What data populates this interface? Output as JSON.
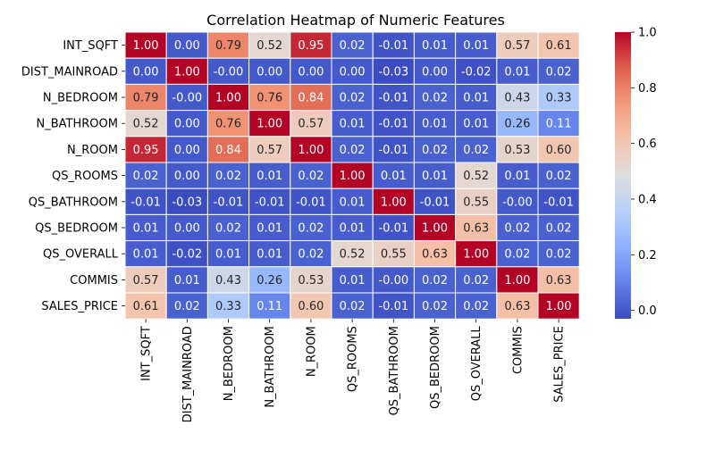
{
  "chart_data": {
    "type": "heatmap",
    "title": "Correlation Heatmap of Numeric Features",
    "xlabel": "",
    "ylabel": "",
    "labels": [
      "INT_SQFT",
      "DIST_MAINROAD",
      "N_BEDROOM",
      "N_BATHROOM",
      "N_ROOM",
      "QS_ROOMS",
      "QS_BATHROOM",
      "QS_BEDROOM",
      "QS_OVERALL",
      "COMMIS",
      "SALES_PRICE"
    ],
    "matrix": [
      [
        1.0,
        0.0,
        0.79,
        0.52,
        0.95,
        0.02,
        -0.01,
        0.01,
        0.01,
        0.57,
        0.61
      ],
      [
        0.0,
        1.0,
        -0.0,
        0.0,
        0.0,
        0.0,
        -0.03,
        0.0,
        -0.02,
        0.01,
        0.02
      ],
      [
        0.79,
        -0.0,
        1.0,
        0.76,
        0.84,
        0.02,
        -0.01,
        0.02,
        0.01,
        0.43,
        0.33
      ],
      [
        0.52,
        0.0,
        0.76,
        1.0,
        0.57,
        0.01,
        -0.01,
        0.01,
        0.01,
        0.26,
        0.11
      ],
      [
        0.95,
        0.0,
        0.84,
        0.57,
        1.0,
        0.02,
        -0.01,
        0.02,
        0.02,
        0.53,
        0.6
      ],
      [
        0.02,
        0.0,
        0.02,
        0.01,
        0.02,
        1.0,
        0.01,
        0.01,
        0.52,
        0.01,
        0.02
      ],
      [
        -0.01,
        -0.03,
        -0.01,
        -0.01,
        -0.01,
        0.01,
        1.0,
        -0.01,
        0.55,
        -0.0,
        -0.01
      ],
      [
        0.01,
        0.0,
        0.02,
        0.01,
        0.02,
        0.01,
        -0.01,
        1.0,
        0.63,
        0.02,
        0.02
      ],
      [
        0.01,
        -0.02,
        0.01,
        0.01,
        0.02,
        0.52,
        0.55,
        0.63,
        1.0,
        0.02,
        0.02
      ],
      [
        0.57,
        0.01,
        0.43,
        0.26,
        0.53,
        0.01,
        -0.0,
        0.02,
        0.02,
        1.0,
        0.63
      ],
      [
        0.61,
        0.02,
        0.33,
        0.11,
        0.6,
        0.02,
        -0.01,
        0.02,
        0.02,
        0.63,
        1.0
      ]
    ],
    "value_format": "0.00",
    "colormap": "coolwarm",
    "vmin": -0.03,
    "vmax": 1.0,
    "colorbar": {
      "ticks": [
        0.0,
        0.2,
        0.4,
        0.6,
        0.8,
        1.0
      ],
      "tick_labels": [
        "0.0",
        "0.2",
        "0.4",
        "0.6",
        "0.8",
        "1.0"
      ]
    },
    "grid": false,
    "legend": "colorbar-right"
  }
}
